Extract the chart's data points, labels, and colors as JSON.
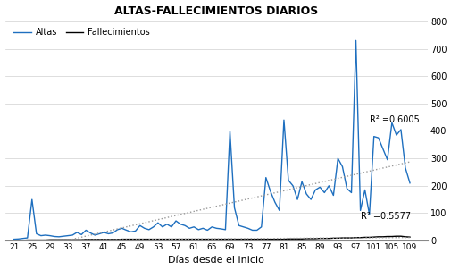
{
  "title": "ALTAS-FALLECIMIENTOS DIARIOS",
  "xlabel": "Días desde el inicio",
  "legend_altas": "Altas",
  "legend_fallecimientos": "Fallecimientos",
  "color_altas": "#1E6FBF",
  "color_fallecimientos": "#000000",
  "color_trend": "#999999",
  "r2_altas": "R² =0.6005",
  "r2_fallecimientos": "R² =0.5577",
  "xlim": [
    19,
    113
  ],
  "ylim": [
    0,
    800
  ],
  "xticks": [
    21,
    25,
    29,
    33,
    37,
    41,
    45,
    49,
    53,
    57,
    61,
    65,
    69,
    73,
    77,
    81,
    85,
    89,
    93,
    97,
    101,
    105,
    109
  ],
  "yticks_right": [
    0,
    100,
    200,
    300,
    400,
    500,
    600,
    700,
    800
  ],
  "days": [
    21,
    22,
    23,
    24,
    25,
    26,
    27,
    28,
    29,
    30,
    31,
    32,
    33,
    34,
    35,
    36,
    37,
    38,
    39,
    40,
    41,
    42,
    43,
    44,
    45,
    46,
    47,
    48,
    49,
    50,
    51,
    52,
    53,
    54,
    55,
    56,
    57,
    58,
    59,
    60,
    61,
    62,
    63,
    64,
    65,
    66,
    67,
    68,
    69,
    70,
    71,
    72,
    73,
    74,
    75,
    76,
    77,
    78,
    79,
    80,
    81,
    82,
    83,
    84,
    85,
    86,
    87,
    88,
    89,
    90,
    91,
    92,
    93,
    94,
    95,
    96,
    97,
    98,
    99,
    100,
    101,
    102,
    103,
    104,
    105,
    106,
    107,
    108,
    109
  ],
  "altas": [
    5,
    6,
    8,
    10,
    150,
    25,
    18,
    20,
    18,
    15,
    14,
    16,
    18,
    20,
    30,
    22,
    38,
    28,
    20,
    25,
    30,
    25,
    28,
    40,
    45,
    38,
    32,
    35,
    55,
    45,
    40,
    50,
    65,
    50,
    60,
    50,
    72,
    60,
    55,
    45,
    50,
    40,
    45,
    38,
    50,
    45,
    43,
    40,
    400,
    120,
    55,
    50,
    45,
    38,
    38,
    50,
    230,
    180,
    140,
    110,
    440,
    220,
    200,
    150,
    215,
    170,
    150,
    185,
    195,
    175,
    200,
    165,
    300,
    270,
    190,
    175,
    730,
    110,
    185,
    95,
    380,
    375,
    335,
    295,
    430,
    385,
    405,
    265,
    210
  ],
  "fallecimientos": [
    1,
    1,
    1,
    2,
    2,
    2,
    2,
    2,
    3,
    3,
    3,
    3,
    3,
    3,
    3,
    3,
    4,
    4,
    4,
    4,
    4,
    4,
    4,
    4,
    5,
    5,
    5,
    5,
    5,
    5,
    5,
    5,
    5,
    5,
    5,
    5,
    5,
    5,
    5,
    5,
    5,
    5,
    5,
    5,
    5,
    5,
    5,
    5,
    5,
    5,
    5,
    5,
    5,
    5,
    5,
    5,
    5,
    5,
    5,
    5,
    5,
    6,
    6,
    6,
    6,
    7,
    7,
    7,
    8,
    8,
    8,
    9,
    9,
    10,
    10,
    10,
    11,
    11,
    12,
    12,
    13,
    14,
    14,
    15,
    15,
    16,
    16,
    14,
    13
  ]
}
